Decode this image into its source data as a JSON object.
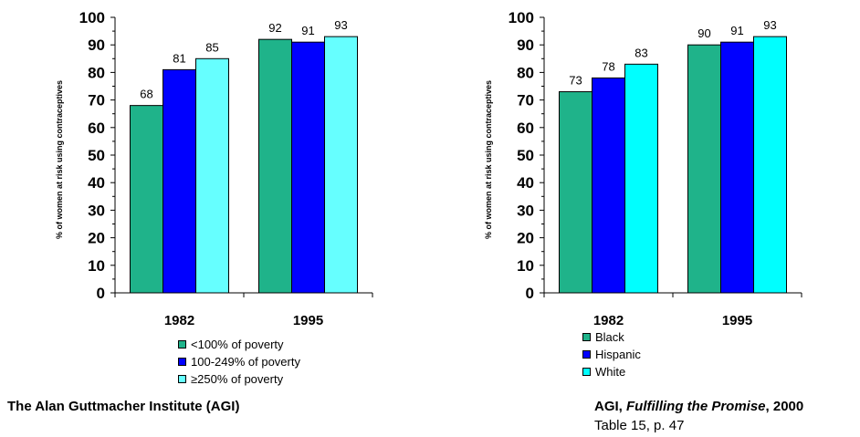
{
  "chart_data": [
    {
      "type": "bar",
      "ylabel": "% of women at risk using contraceptives",
      "ylim": [
        0,
        100
      ],
      "yticks": [
        0,
        10,
        20,
        30,
        40,
        50,
        60,
        70,
        80,
        90,
        100
      ],
      "categories": [
        "1982",
        "1995"
      ],
      "series": [
        {
          "name": "<100% of poverty",
          "values": [
            68,
            92
          ],
          "color": "#1fb38a"
        },
        {
          "name": "100-249% of poverty",
          "values": [
            81,
            91
          ],
          "color": "#0000ff"
        },
        {
          "name": "≥250% of poverty",
          "values": [
            85,
            93
          ],
          "color": "#66ffff"
        }
      ],
      "legend": "bottom"
    },
    {
      "type": "bar",
      "ylabel": "% of women at risk using contraceptives",
      "ylim": [
        0,
        100
      ],
      "yticks": [
        0,
        10,
        20,
        30,
        40,
        50,
        60,
        70,
        80,
        90,
        100
      ],
      "categories": [
        "1982",
        "1995"
      ],
      "series": [
        {
          "name": "Black",
          "values": [
            73,
            90
          ],
          "color": "#1fb38a"
        },
        {
          "name": "Hispanic",
          "values": [
            78,
            91
          ],
          "color": "#0000ff"
        },
        {
          "name": "White",
          "values": [
            83,
            93
          ],
          "color": "#00ffff"
        }
      ],
      "legend": "bottom"
    }
  ],
  "footer": {
    "left": "The Alan Guttmacher Institute (AGI)",
    "right_prefix": "AGI, ",
    "right_title": "Fulfilling the Promise",
    "right_suffix": ", 2000",
    "right_line2": "Table 15, p. 47"
  }
}
